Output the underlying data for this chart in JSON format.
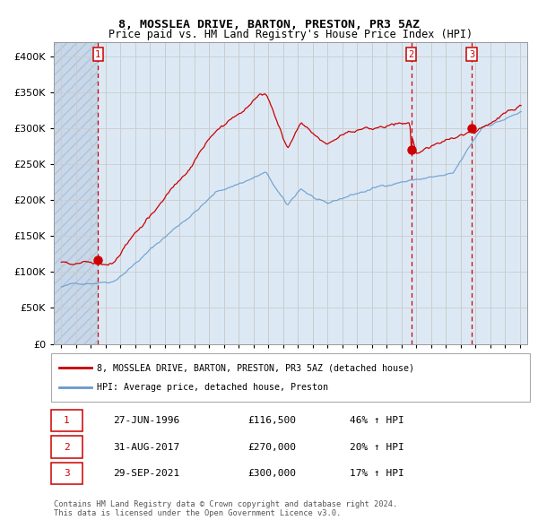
{
  "title": "8, MOSSLEA DRIVE, BARTON, PRESTON, PR3 5AZ",
  "subtitle": "Price paid vs. HM Land Registry's House Price Index (HPI)",
  "legend_label_red": "8, MOSSLEA DRIVE, BARTON, PRESTON, PR3 5AZ (detached house)",
  "legend_label_blue": "HPI: Average price, detached house, Preston",
  "footer": "Contains HM Land Registry data © Crown copyright and database right 2024.\nThis data is licensed under the Open Government Licence v3.0.",
  "transactions": [
    {
      "label": "1",
      "date": "27-JUN-1996",
      "price": 116500,
      "pct": "46%",
      "dir": "↑"
    },
    {
      "label": "2",
      "date": "31-AUG-2017",
      "price": 270000,
      "pct": "20%",
      "dir": "↑"
    },
    {
      "label": "3",
      "date": "29-SEP-2021",
      "price": 300000,
      "pct": "17%",
      "dir": "↑"
    }
  ],
  "transaction_dates_decimal": [
    1996.49,
    2017.66,
    2021.75
  ],
  "transaction_prices": [
    116500,
    270000,
    300000
  ],
  "ylim": [
    0,
    420000
  ],
  "yticks": [
    0,
    50000,
    100000,
    150000,
    200000,
    250000,
    300000,
    350000,
    400000
  ],
  "xlim_start": 1993.5,
  "xlim_end": 2025.5,
  "xticks": [
    1994,
    1995,
    1996,
    1997,
    1998,
    1999,
    2000,
    2001,
    2002,
    2003,
    2004,
    2005,
    2006,
    2007,
    2008,
    2009,
    2010,
    2011,
    2012,
    2013,
    2014,
    2015,
    2016,
    2017,
    2018,
    2019,
    2020,
    2021,
    2022,
    2023,
    2024,
    2025
  ],
  "color_red": "#cc0000",
  "color_blue": "#6699cc",
  "color_bg": "#dce9f5",
  "color_grid": "#aaaaaa",
  "color_dashed": "#cc0000",
  "marker_color": "#cc0000",
  "label_box_color": "#cc0000"
}
